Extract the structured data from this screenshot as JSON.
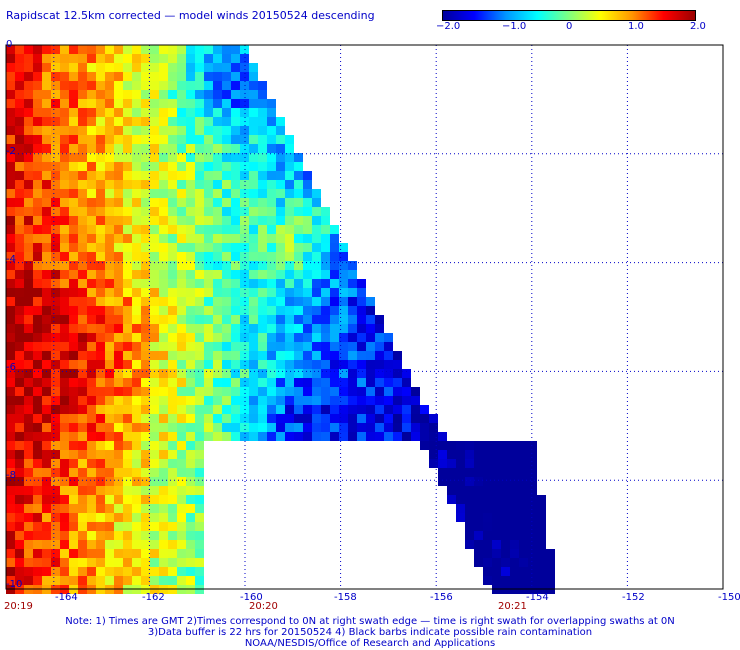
{
  "title": "Rapidscat 12.5km corrected — model winds 20150524 descending",
  "colorbar": {
    "labels": [
      "−2.0",
      "−1.0",
      "0",
      "1.0",
      "2.0"
    ],
    "min": -2.0,
    "max": 2.0,
    "colors": [
      "#00009b",
      "#0000ff",
      "#0096ff",
      "#00ffff",
      "#7fff7f",
      "#ffff00",
      "#ff9600",
      "#ff0000",
      "#9b0000"
    ]
  },
  "map": {
    "lon_labels": [
      "-164",
      "-162",
      "-160",
      "-158",
      "-156",
      "-154",
      "-152",
      "-150"
    ],
    "lat_labels": [
      "0",
      "-2",
      "-4",
      "-6",
      "-8",
      "-10"
    ],
    "lon_range": [
      -165,
      -150
    ],
    "lat_range": [
      -10,
      0
    ],
    "grid": "dotted blue"
  },
  "times": [
    "20:19",
    "20:20",
    "20:21"
  ],
  "footnotes": [
    "Note: 1) Times are GMT 2)Times correspond to 0N at right swath edge — time is right swath for overlapping swaths at 0N",
    "3)Data buffer is 22 hrs for 20150524 4) Black barbs indicate possible rain contamination",
    "NOAA/NESDIS/Office of Research and Applications"
  ]
}
